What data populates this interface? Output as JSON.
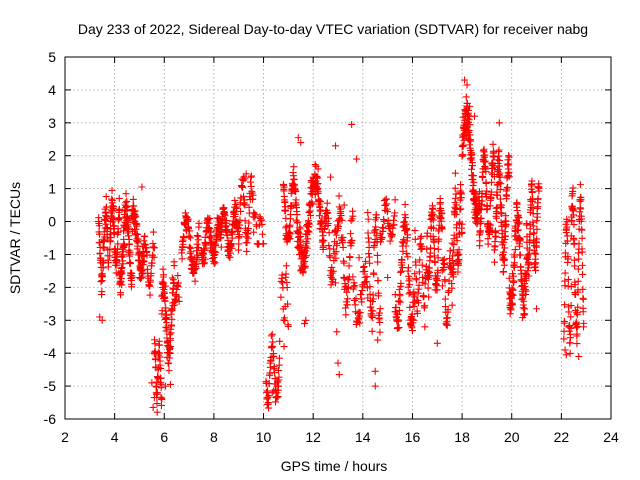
{
  "chart_data": {
    "type": "scatter",
    "title": "Day 233 of 2022, Sidereal Day-to-day VTEC variation (SDTVAR) for receiver nabg",
    "xlabel": "GPS time / hours",
    "ylabel": "SDTVAR / TECUs",
    "xlim": [
      2,
      24
    ],
    "ylim": [
      -6,
      5
    ],
    "xticks": [
      2,
      4,
      6,
      8,
      10,
      12,
      14,
      16,
      18,
      20,
      22,
      24
    ],
    "yticks": [
      -6,
      -5,
      -4,
      -3,
      -2,
      -1,
      0,
      1,
      2,
      3,
      4,
      5
    ],
    "grid": true,
    "marker": "+",
    "color": "#ff0000",
    "series": [
      {
        "name": "SDTVAR",
        "segments": [
          {
            "x0": 3.35,
            "x1": 3.75,
            "n": 60,
            "center": -0.8,
            "amp": 1.0,
            "jitter": 0.7
          },
          {
            "x0": 3.8,
            "x1": 4.2,
            "n": 60,
            "center": -0.4,
            "amp": 0.9,
            "jitter": 0.7
          },
          {
            "x0": 4.2,
            "x1": 4.7,
            "n": 90,
            "center": -0.7,
            "amp": 1.0,
            "jitter": 0.8
          },
          {
            "x0": 4.7,
            "x1": 5.2,
            "n": 70,
            "center": -0.6,
            "amp": 0.8,
            "jitter": 0.7
          },
          {
            "x0": 5.2,
            "x1": 5.6,
            "n": 35,
            "center": -1.3,
            "amp": 0.6,
            "jitter": 0.5
          },
          {
            "x0": 5.6,
            "x1": 5.9,
            "n": 45,
            "center": -4.5,
            "amp": 0.8,
            "jitter": 0.6
          },
          {
            "x0": 5.9,
            "x1": 6.4,
            "n": 80,
            "center": -3.0,
            "amp": 1.2,
            "jitter": 0.8
          },
          {
            "x0": 6.4,
            "x1": 6.6,
            "n": 15,
            "center": -2.2,
            "amp": 0.3,
            "jitter": 0.3
          },
          {
            "x0": 6.7,
            "x1": 7.4,
            "n": 80,
            "center": -0.7,
            "amp": 0.8,
            "jitter": 0.6
          },
          {
            "x0": 7.5,
            "x1": 8.3,
            "n": 90,
            "center": -0.6,
            "amp": 0.5,
            "jitter": 0.5
          },
          {
            "x0": 8.3,
            "x1": 9.0,
            "n": 90,
            "center": -0.3,
            "amp": 0.6,
            "jitter": 0.5
          },
          {
            "x0": 9.0,
            "x1": 9.6,
            "n": 50,
            "center": 0.3,
            "amp": 0.9,
            "jitter": 0.5
          },
          {
            "x0": 9.6,
            "x1": 10.0,
            "n": 20,
            "center": -0.2,
            "amp": 0.5,
            "jitter": 0.4
          },
          {
            "x0": 10.1,
            "x1": 10.65,
            "n": 60,
            "center": -4.5,
            "amp": 0.8,
            "jitter": 0.6
          },
          {
            "x0": 10.7,
            "x1": 11.0,
            "n": 20,
            "center": -2.5,
            "amp": 1.0,
            "jitter": 0.6
          },
          {
            "x0": 10.8,
            "x1": 11.5,
            "n": 100,
            "center": 0.3,
            "amp": 1.0,
            "jitter": 0.6
          },
          {
            "x0": 11.5,
            "x1": 12.4,
            "n": 130,
            "center": 0.0,
            "amp": 1.3,
            "jitter": 0.7
          },
          {
            "x0": 12.4,
            "x1": 12.9,
            "n": 40,
            "center": -0.7,
            "amp": 1.0,
            "jitter": 0.6
          },
          {
            "x0": 12.9,
            "x1": 13.6,
            "n": 60,
            "center": -1.0,
            "amp": 1.3,
            "jitter": 0.7
          },
          {
            "x0": 13.6,
            "x1": 14.2,
            "n": 40,
            "center": -2.3,
            "amp": 0.8,
            "jitter": 0.6
          },
          {
            "x0": 14.2,
            "x1": 14.7,
            "n": 55,
            "center": -1.5,
            "amp": 1.6,
            "jitter": 0.7
          },
          {
            "x0": 14.7,
            "x1": 15.3,
            "n": 40,
            "center": 0.0,
            "amp": 0.5,
            "jitter": 0.4
          },
          {
            "x0": 15.3,
            "x1": 16.1,
            "n": 90,
            "center": -1.5,
            "amp": 1.5,
            "jitter": 0.8
          },
          {
            "x0": 16.1,
            "x1": 16.6,
            "n": 40,
            "center": -1.5,
            "amp": 1.0,
            "jitter": 0.6
          },
          {
            "x0": 16.6,
            "x1": 17.2,
            "n": 80,
            "center": -0.8,
            "amp": 1.2,
            "jitter": 0.7
          },
          {
            "x0": 17.2,
            "x1": 17.6,
            "n": 40,
            "center": -2.2,
            "amp": 1.0,
            "jitter": 0.6
          },
          {
            "x0": 17.6,
            "x1": 18.0,
            "n": 60,
            "center": -0.3,
            "amp": 1.2,
            "jitter": 0.7
          },
          {
            "x0": 18.0,
            "x1": 18.7,
            "n": 130,
            "center": 1.7,
            "amp": 1.5,
            "jitter": 0.8
          },
          {
            "x0": 18.7,
            "x1": 19.3,
            "n": 90,
            "center": 0.8,
            "amp": 1.2,
            "jitter": 0.7
          },
          {
            "x0": 19.3,
            "x1": 19.9,
            "n": 100,
            "center": 0.3,
            "amp": 1.4,
            "jitter": 0.8
          },
          {
            "x0": 19.9,
            "x1": 20.6,
            "n": 110,
            "center": -1.2,
            "amp": 1.3,
            "jitter": 0.8
          },
          {
            "x0": 20.6,
            "x1": 21.1,
            "n": 80,
            "center": -0.2,
            "amp": 1.2,
            "jitter": 0.6
          },
          {
            "x0": 22.1,
            "x1": 22.4,
            "n": 40,
            "center": -1.8,
            "amp": 1.8,
            "jitter": 0.7
          },
          {
            "x0": 22.4,
            "x1": 22.9,
            "n": 80,
            "center": -1.3,
            "amp": 2.0,
            "jitter": 0.8
          }
        ],
        "points": [
          [
            13.55,
            2.95
          ],
          [
            13.75,
            1.9
          ],
          [
            12.9,
            2.3
          ],
          [
            12.7,
            1.35
          ],
          [
            13.25,
            0.5
          ],
          [
            14.5,
            -4.55
          ],
          [
            14.5,
            -5.0
          ],
          [
            13.0,
            -4.3
          ],
          [
            13.05,
            -4.65
          ],
          [
            12.95,
            -3.35
          ],
          [
            5.55,
            -5.65
          ],
          [
            5.6,
            -5.35
          ],
          [
            5.5,
            -4.9
          ],
          [
            6.25,
            -4.95
          ],
          [
            6.05,
            -5.0
          ],
          [
            10.5,
            -5.35
          ],
          [
            10.35,
            -5.2
          ],
          [
            10.6,
            -5.0
          ],
          [
            10.4,
            -5.15
          ],
          [
            18.1,
            4.3
          ],
          [
            18.2,
            4.15
          ],
          [
            18.3,
            3.5
          ],
          [
            18.5,
            3.2
          ],
          [
            19.5,
            3.0
          ],
          [
            9.3,
            1.45
          ],
          [
            9.25,
            1.3
          ],
          [
            9.2,
            1.35
          ],
          [
            11.4,
            2.55
          ],
          [
            11.5,
            2.4
          ],
          [
            13.85,
            -1.1
          ],
          [
            14.6,
            -3.6
          ],
          [
            15.0,
            -1.7
          ],
          [
            17.0,
            -3.7
          ],
          [
            21.0,
            -2.65
          ],
          [
            12.2,
            1.6
          ],
          [
            11.65,
            -3.1
          ],
          [
            11.7,
            -3.0
          ],
          [
            22.2,
            -4.05
          ],
          [
            22.15,
            -3.9
          ],
          [
            22.7,
            -4.1
          ],
          [
            16.5,
            -3.2
          ],
          [
            5.1,
            1.05
          ],
          [
            3.4,
            -2.9
          ],
          [
            3.5,
            -3.0
          ]
        ]
      }
    ]
  }
}
